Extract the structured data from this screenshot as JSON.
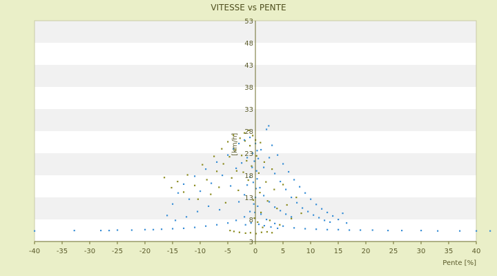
{
  "chart_data": {
    "type": "scatter",
    "title": "VITESSE vs PENTE",
    "xlabel": "Pente [%]",
    "ylabel": "[km/h]",
    "xlim": [
      -40,
      40
    ],
    "ylim": [
      3,
      53
    ],
    "x_ticks": [
      "-40",
      "-35",
      "-30",
      "-25",
      "-20",
      "-15",
      "-10",
      "-5",
      "0",
      "5",
      "10",
      "15",
      "20",
      "25",
      "30",
      "35",
      "40"
    ],
    "y_ticks": [
      "3",
      "8",
      "13",
      "18",
      "23",
      "28",
      "33",
      "38",
      "43",
      "48",
      "53"
    ],
    "grid": "horizontal alternating bands",
    "legend": "none",
    "colors": {
      "background": "#eaefc8",
      "plot_band_white": "#ffffff",
      "plot_band_grey": "#f1f1f1",
      "axis": "#6b6b2a",
      "series_blue": "#3a8fd6",
      "series_olive": "#8a8a1e"
    },
    "series": [
      {
        "color": "#8a8a1e",
        "points": [
          [
            -16.5,
            17.5
          ],
          [
            -15.2,
            15.2
          ],
          [
            -14.1,
            16.6
          ],
          [
            -13.0,
            14.2
          ],
          [
            -12.3,
            18.1
          ],
          [
            -11.0,
            15.7
          ],
          [
            -10.4,
            12.6
          ],
          [
            -9.6,
            20.4
          ],
          [
            -8.8,
            17.0
          ],
          [
            -8.1,
            13.7
          ],
          [
            -7.5,
            22.3
          ],
          [
            -7.0,
            18.9
          ],
          [
            -6.6,
            15.3
          ],
          [
            -6.1,
            24.0
          ],
          [
            -5.8,
            20.6
          ],
          [
            -5.4,
            11.8
          ],
          [
            -5.0,
            25.6
          ],
          [
            -4.7,
            22.2
          ],
          [
            -4.3,
            17.4
          ],
          [
            -4.0,
            27.1
          ],
          [
            -3.7,
            23.8
          ],
          [
            -3.4,
            19.0
          ],
          [
            -3.1,
            14.6
          ],
          [
            -2.8,
            26.4
          ],
          [
            -2.5,
            22.5
          ],
          [
            -2.2,
            18.7
          ],
          [
            -1.9,
            25.8
          ],
          [
            -1.6,
            21.3
          ],
          [
            -1.3,
            16.9
          ],
          [
            -1.0,
            24.7
          ],
          [
            -0.7,
            20.1
          ],
          [
            -0.4,
            12.4
          ],
          [
            -0.2,
            8.3
          ],
          [
            0.0,
            26.0
          ],
          [
            0.2,
            22.4
          ],
          [
            0.4,
            7.4
          ],
          [
            0.6,
            18.5
          ],
          [
            0.8,
            14.1
          ],
          [
            1.0,
            9.6
          ],
          [
            1.3,
            6.2
          ],
          [
            1.6,
            21.0
          ],
          [
            1.9,
            16.5
          ],
          [
            2.2,
            12.2
          ],
          [
            2.6,
            7.8
          ],
          [
            3.0,
            19.4
          ],
          [
            3.4,
            14.8
          ],
          [
            3.9,
            10.5
          ],
          [
            4.4,
            6.8
          ],
          [
            5.0,
            15.9
          ],
          [
            5.7,
            11.3
          ],
          [
            6.5,
            8.2
          ],
          [
            7.4,
            13.0
          ],
          [
            8.3,
            9.4
          ],
          [
            -3.9,
            5.3
          ],
          [
            -2.9,
            5.1
          ],
          [
            -1.8,
            4.9
          ],
          [
            -0.9,
            5.0
          ],
          [
            0.1,
            4.8
          ],
          [
            1.1,
            5.1
          ],
          [
            2.1,
            5.2
          ],
          [
            3.0,
            5.0
          ],
          [
            -4.6,
            5.5
          ],
          [
            -1.2,
            28.2
          ],
          [
            -2.0,
            27.6
          ],
          [
            -0.5,
            27.0
          ],
          [
            0.9,
            25.4
          ]
        ]
      },
      {
        "color": "#3a8fd6",
        "points": [
          [
            -40.0,
            5.4
          ],
          [
            -32.8,
            5.5
          ],
          [
            -28.0,
            5.5
          ],
          [
            -26.5,
            5.5
          ],
          [
            -25.0,
            5.6
          ],
          [
            -22.4,
            5.6
          ],
          [
            -20.0,
            5.7
          ],
          [
            -18.5,
            5.7
          ],
          [
            -17.0,
            5.8
          ],
          [
            -15.0,
            5.9
          ],
          [
            -13.0,
            6.0
          ],
          [
            -11.0,
            6.2
          ],
          [
            -9.0,
            6.5
          ],
          [
            -7.0,
            6.8
          ],
          [
            -5.0,
            7.2
          ],
          [
            -3.5,
            7.8
          ],
          [
            -2.0,
            8.6
          ],
          [
            -1.0,
            9.8
          ],
          [
            -0.3,
            11.5
          ],
          [
            0.0,
            13.0
          ],
          [
            0.4,
            11.0
          ],
          [
            1.0,
            9.2
          ],
          [
            2.0,
            8.0
          ],
          [
            3.5,
            7.1
          ],
          [
            5.0,
            6.5
          ],
          [
            7.0,
            6.1
          ],
          [
            9.0,
            5.9
          ],
          [
            11.0,
            5.8
          ],
          [
            13.0,
            5.7
          ],
          [
            15.0,
            5.7
          ],
          [
            17.0,
            5.6
          ],
          [
            19.0,
            5.6
          ],
          [
            21.2,
            5.6
          ],
          [
            24.0,
            5.5
          ],
          [
            26.5,
            5.5
          ],
          [
            30.0,
            5.5
          ],
          [
            33.0,
            5.4
          ],
          [
            37.0,
            5.4
          ],
          [
            40.0,
            5.4
          ],
          [
            42.5,
            5.4
          ],
          [
            -16.0,
            8.9
          ],
          [
            -15.0,
            11.5
          ],
          [
            -14.0,
            14.0
          ],
          [
            -13.0,
            16.0
          ],
          [
            -12.0,
            12.6
          ],
          [
            -11.0,
            17.8
          ],
          [
            -10.0,
            14.4
          ],
          [
            -9.0,
            19.4
          ],
          [
            -8.0,
            16.2
          ],
          [
            -7.0,
            21.0
          ],
          [
            -6.0,
            18.0
          ],
          [
            -5.0,
            22.6
          ],
          [
            -4.5,
            15.6
          ],
          [
            -4.0,
            24.0
          ],
          [
            -3.5,
            19.6
          ],
          [
            -3.0,
            25.2
          ],
          [
            -2.5,
            20.8
          ],
          [
            -2.0,
            26.0
          ],
          [
            -1.5,
            22.0
          ],
          [
            -1.0,
            26.6
          ],
          [
            -0.5,
            23.0
          ],
          [
            0.0,
            25.2
          ],
          [
            0.5,
            21.8
          ],
          [
            1.0,
            23.8
          ],
          [
            1.5,
            19.8
          ],
          [
            2.0,
            28.4
          ],
          [
            2.4,
            29.2
          ],
          [
            2.5,
            22.0
          ],
          [
            3.0,
            24.8
          ],
          [
            3.5,
            18.4
          ],
          [
            4.0,
            22.6
          ],
          [
            4.5,
            16.6
          ],
          [
            5.0,
            20.6
          ],
          [
            5.5,
            14.8
          ],
          [
            6.0,
            18.8
          ],
          [
            6.5,
            13.0
          ],
          [
            7.0,
            17.0
          ],
          [
            7.5,
            11.8
          ],
          [
            8.0,
            15.4
          ],
          [
            8.5,
            10.6
          ],
          [
            9.0,
            14.0
          ],
          [
            9.5,
            9.8
          ],
          [
            10.0,
            12.6
          ],
          [
            10.5,
            9.0
          ],
          [
            11.0,
            11.4
          ],
          [
            11.5,
            8.4
          ],
          [
            12.0,
            10.4
          ],
          [
            12.5,
            7.8
          ],
          [
            13.0,
            9.6
          ],
          [
            13.5,
            7.4
          ],
          [
            14.0,
            8.8
          ],
          [
            15.0,
            8.0
          ],
          [
            15.8,
            9.4
          ],
          [
            16.5,
            7.2
          ],
          [
            -3.0,
            12.0
          ],
          [
            -2.0,
            13.6
          ],
          [
            -1.5,
            15.8
          ],
          [
            -1.0,
            17.6
          ],
          [
            -0.6,
            19.8
          ],
          [
            0.3,
            17.2
          ],
          [
            0.8,
            15.2
          ],
          [
            1.5,
            13.4
          ],
          [
            2.5,
            12.0
          ],
          [
            3.5,
            10.8
          ],
          [
            4.5,
            10.0
          ],
          [
            5.5,
            9.2
          ],
          [
            6.5,
            8.6
          ],
          [
            -6.5,
            10.2
          ],
          [
            -8.5,
            11.0
          ],
          [
            -10.5,
            9.8
          ],
          [
            -12.5,
            8.6
          ],
          [
            -14.5,
            7.8
          ],
          [
            -1.8,
            6.8
          ],
          [
            -0.8,
            7.2
          ],
          [
            0.6,
            6.9
          ],
          [
            1.6,
            6.6
          ],
          [
            2.8,
            6.3
          ],
          [
            4.0,
            6.0
          ],
          [
            -0.2,
            21.2
          ],
          [
            0.2,
            19.0
          ],
          [
            -0.4,
            16.4
          ],
          [
            0.1,
            15.0
          ],
          [
            0.3,
            23.6
          ],
          [
            -0.1,
            9.6
          ]
        ]
      }
    ]
  }
}
